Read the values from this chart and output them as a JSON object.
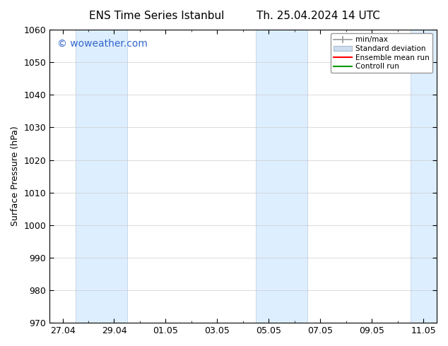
{
  "title_left": "ENS Time Series Istanbul",
  "title_right": "Th. 25.04.2024 14 UTC",
  "ylabel": "Surface Pressure (hPa)",
  "ylim": [
    970,
    1060
  ],
  "yticks": [
    970,
    980,
    990,
    1000,
    1010,
    1020,
    1030,
    1040,
    1050,
    1060
  ],
  "xtick_labels": [
    "27.04",
    "29.04",
    "01.05",
    "03.05",
    "05.05",
    "07.05",
    "09.05",
    "11.05"
  ],
  "xtick_values": [
    0,
    2,
    4,
    6,
    8,
    10,
    12,
    14
  ],
  "xlim": [
    -0.5,
    14.5
  ],
  "watermark": "© woweather.com",
  "watermark_color": "#3366cc",
  "bg_color": "#ffffff",
  "plot_bg_color": "#ffffff",
  "shaded_bands": [
    {
      "x_start": 0.5,
      "x_end": 2.5,
      "color": "#ddeeff",
      "edge_color": "#bbccdd"
    },
    {
      "x_start": 7.5,
      "x_end": 9.5,
      "color": "#ddeeff",
      "edge_color": "#bbccdd"
    },
    {
      "x_start": 13.5,
      "x_end": 14.5,
      "color": "#ddeeff",
      "edge_color": "#bbccdd"
    }
  ],
  "legend_items": [
    {
      "label": "min/max",
      "color": "#999999",
      "style": "errorbar"
    },
    {
      "label": "Standard deviation",
      "color": "#ccddf0",
      "style": "box"
    },
    {
      "label": "Ensemble mean run",
      "color": "#ff0000",
      "style": "line"
    },
    {
      "label": "Controll run",
      "color": "#009900",
      "style": "line"
    }
  ],
  "font_size": 9,
  "title_font_size": 11,
  "watermark_font_size": 10
}
